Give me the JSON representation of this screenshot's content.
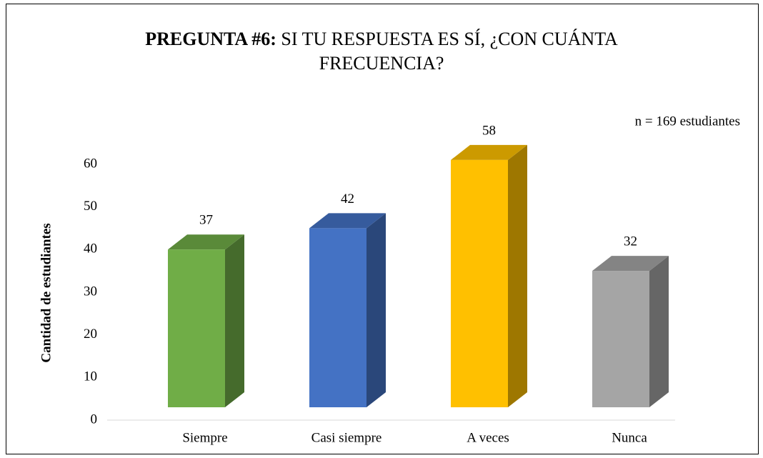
{
  "chart_data": {
    "type": "bar3d",
    "title_prefix": "PREGUNTA #6:",
    "title": "SI TU RESPUESTA ES SÍ, ¿CON CUÁNTA FRECUENCIA?",
    "annotation": "n = 169 estudiantes",
    "y_label": "Cantidad de estudiantes",
    "categories": [
      "Siempre",
      "Casi siempre",
      "A veces",
      "Nunca"
    ],
    "values": [
      37,
      42,
      58,
      32
    ],
    "colors": [
      "#70ad47",
      "#4472c4",
      "#ffc000",
      "#a5a5a5"
    ],
    "ylim": [
      0,
      60
    ],
    "yticks": [
      0,
      10,
      20,
      30,
      40,
      50,
      60
    ]
  }
}
